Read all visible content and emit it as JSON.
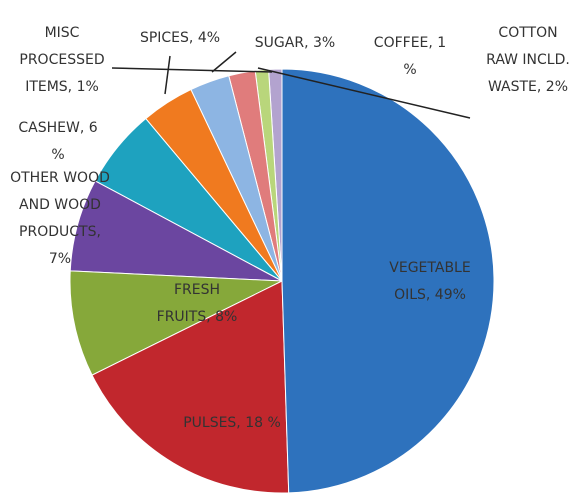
{
  "chart_data": {
    "type": "pie",
    "labels": [
      "VEGETABLE OILS, 49%",
      "PULSES, 18 %",
      "FRESH FRUITS, 8%",
      "OTHER WOOD AND WOOD PRODUCTS, 7%",
      "CASHEW, 6 %",
      "SPICES, 4%",
      "SUGAR, 3%",
      "COTTON RAW INCLD. WASTE, 2%",
      "COFFEE, 1 %",
      "MISC PROCESSED ITEMS, 1%"
    ],
    "values": [
      49,
      18,
      8,
      7,
      6,
      4,
      3,
      2,
      1,
      1
    ],
    "colors": [
      "#2e72bd",
      "#c1272d",
      "#86a83a",
      "#6b46a0",
      "#1ea2bf",
      "#f07a1f",
      "#8db5e3",
      "#e07c7c",
      "#b9d67b",
      "#b3a3cf"
    ]
  }
}
